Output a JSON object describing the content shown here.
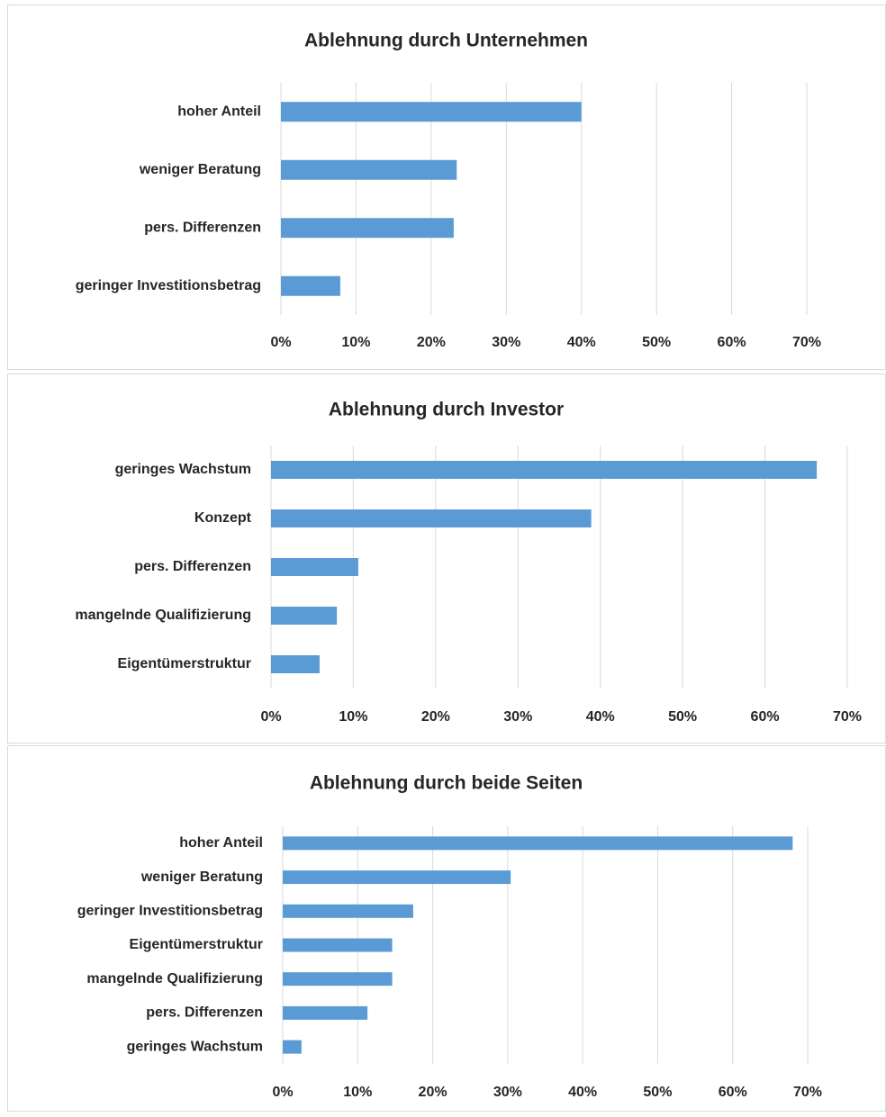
{
  "chart_data": [
    {
      "type": "bar",
      "orientation": "horizontal",
      "title": "Ablehnung durch Unternehmen",
      "categories": [
        "hoher Anteil",
        "weniger Beratung",
        "pers. Differenzen",
        "geringer Investitionsbetrag"
      ],
      "values": [
        40.0,
        23.4,
        23.0,
        7.9
      ],
      "color": "#5b9bd5",
      "xlim": [
        0,
        70
      ],
      "xticks": [
        {
          "value": 0,
          "label": "0%"
        },
        {
          "value": 10,
          "label": "10%"
        },
        {
          "value": 20,
          "label": "20%"
        },
        {
          "value": 30,
          "label": "30%"
        },
        {
          "value": 40,
          "label": "40%"
        },
        {
          "value": 50,
          "label": "50%"
        },
        {
          "value": 60,
          "label": "60%"
        },
        {
          "value": 70,
          "label": "70%"
        }
      ],
      "grid": true
    },
    {
      "type": "bar",
      "orientation": "horizontal",
      "title": "Ablehnung durch Investor",
      "categories": [
        "geringes Wachstum",
        "Konzept",
        "pers. Differenzen",
        "mangelnde Qualifizierung",
        "Eigentümerstruktur"
      ],
      "values": [
        66.3,
        38.9,
        10.6,
        8.0,
        5.9
      ],
      "color": "#5b9bd5",
      "xlim": [
        0,
        70
      ],
      "xticks": [
        {
          "value": 0,
          "label": "0%"
        },
        {
          "value": 10,
          "label": "10%"
        },
        {
          "value": 20,
          "label": "20%"
        },
        {
          "value": 30,
          "label": "30%"
        },
        {
          "value": 40,
          "label": "40%"
        },
        {
          "value": 50,
          "label": "50%"
        },
        {
          "value": 60,
          "label": "60%"
        },
        {
          "value": 70,
          "label": "70%"
        }
      ],
      "grid": true
    },
    {
      "type": "bar",
      "orientation": "horizontal",
      "title": "Ablehnung durch beide Seiten",
      "categories": [
        "hoher Anteil",
        "weniger Beratung",
        "geringer Investitionsbetrag",
        "Eigentümerstruktur",
        "mangelnde Qualifizierung",
        "pers. Differenzen",
        "geringes Wachstum"
      ],
      "values": [
        68.0,
        30.4,
        17.4,
        14.6,
        14.6,
        11.3,
        2.5
      ],
      "color": "#5b9bd5",
      "xlim": [
        0,
        70
      ],
      "xticks": [
        {
          "value": 0,
          "label": "0%"
        },
        {
          "value": 10,
          "label": "10%"
        },
        {
          "value": 20,
          "label": "20%"
        },
        {
          "value": 30,
          "label": "30%"
        },
        {
          "value": 40,
          "label": "40%"
        },
        {
          "value": 50,
          "label": "50%"
        },
        {
          "value": 60,
          "label": "60%"
        },
        {
          "value": 70,
          "label": "70%"
        }
      ],
      "grid": true
    }
  ]
}
